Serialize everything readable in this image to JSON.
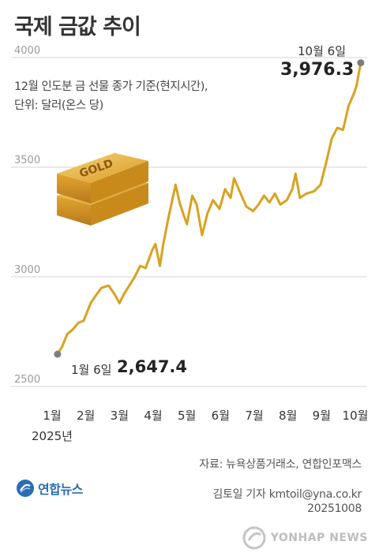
{
  "title": "국제 금값 추이",
  "note_line1": "12월 인도분 금 선물 종가 기준(현지시간),",
  "note_line2": "단위: 달러(온스 당)",
  "source": "자료: 뉴욕상품거래소, 연합인포맥스",
  "reporter": "김토일 기자 kmtoil@yna.co.kr",
  "date_code": "20251008",
  "logo_text": "연합뉴스",
  "watermark_text": "YONHAP NEWS",
  "gold_bar_text": "GOLD",
  "chart_data": {
    "type": "line",
    "title": "국제 금값 추이",
    "ylim": [
      2500,
      4000
    ],
    "yticks": [
      2500,
      3000,
      3500,
      4000
    ],
    "xticks": [
      "1월",
      "2월",
      "3월",
      "4월",
      "5월",
      "6월",
      "7월",
      "8월",
      "9월",
      "10월"
    ],
    "year_label": "2025년",
    "grid": true,
    "series": [
      {
        "color": "#d9a21f",
        "x": [
          "2025-01-06",
          "2025-01-10",
          "2025-01-15",
          "2025-01-20",
          "2025-01-25",
          "2025-01-30",
          "2025-02-05",
          "2025-02-10",
          "2025-02-14",
          "2025-02-20",
          "2025-02-25",
          "2025-03-01",
          "2025-03-05",
          "2025-03-10",
          "2025-03-15",
          "2025-03-20",
          "2025-03-25",
          "2025-03-31",
          "2025-04-03",
          "2025-04-07",
          "2025-04-10",
          "2025-04-15",
          "2025-04-21",
          "2025-04-25",
          "2025-05-01",
          "2025-05-06",
          "2025-05-10",
          "2025-05-15",
          "2025-05-20",
          "2025-05-25",
          "2025-05-31",
          "2025-06-05",
          "2025-06-10",
          "2025-06-13",
          "2025-06-18",
          "2025-06-24",
          "2025-06-30",
          "2025-07-05",
          "2025-07-10",
          "2025-07-15",
          "2025-07-20",
          "2025-07-25",
          "2025-07-31",
          "2025-08-05",
          "2025-08-08",
          "2025-08-12",
          "2025-08-18",
          "2025-08-25",
          "2025-08-31",
          "2025-09-05",
          "2025-09-10",
          "2025-09-15",
          "2025-09-20",
          "2025-09-25",
          "2025-09-30",
          "2025-10-02",
          "2025-10-06"
        ],
        "y": [
          2647.4,
          2680,
          2740,
          2760,
          2790,
          2800,
          2880,
          2920,
          2950,
          2960,
          2920,
          2880,
          2920,
          2960,
          3000,
          3050,
          3040,
          3120,
          3150,
          3050,
          3150,
          3280,
          3420,
          3330,
          3240,
          3370,
          3330,
          3190,
          3290,
          3350,
          3310,
          3400,
          3360,
          3450,
          3390,
          3320,
          3300,
          3330,
          3370,
          3340,
          3380,
          3330,
          3350,
          3400,
          3470,
          3360,
          3380,
          3390,
          3420,
          3520,
          3630,
          3680,
          3670,
          3780,
          3840,
          3870,
          3976.3
        ]
      }
    ],
    "annotations": [
      {
        "label": "1월 6일",
        "value": "2,647.4"
      },
      {
        "label": "10월 6일",
        "value": "3,976.3"
      }
    ]
  }
}
